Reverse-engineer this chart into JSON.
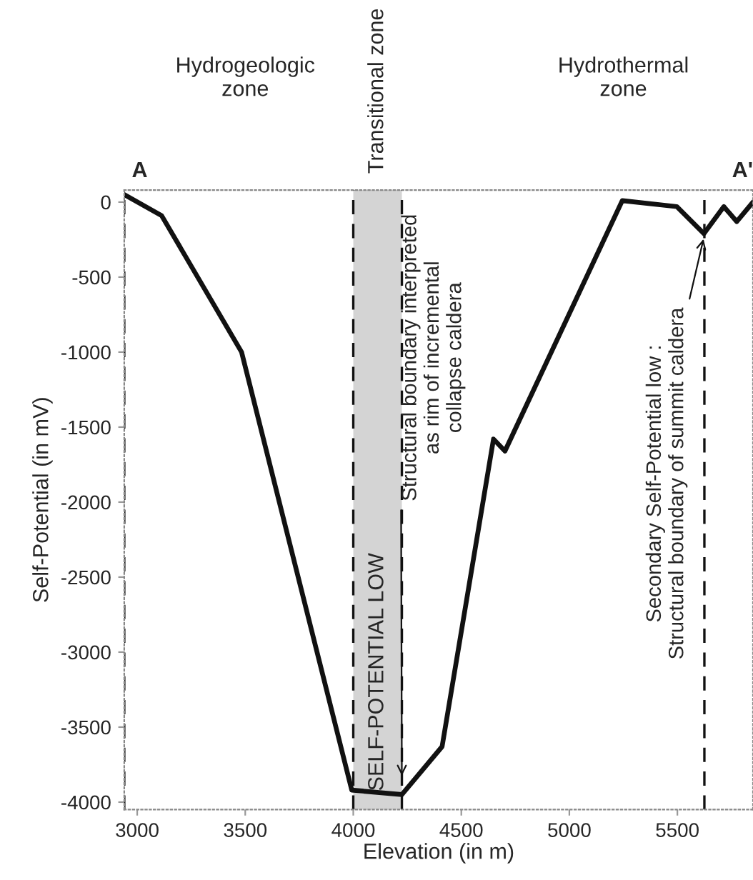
{
  "chart_data": {
    "type": "line",
    "xlabel": "Elevation (in m)",
    "ylabel": "Self-Potential (in mV)",
    "x": [
      2940,
      3113,
      3483,
      3993,
      4225,
      4411,
      4649,
      4702,
      5245,
      5497,
      5623,
      5715,
      5775,
      5850
    ],
    "series": [
      {
        "color": "#111111",
        "values": [
          50,
          -90,
          -1000,
          -3920,
          -3950,
          -3630,
          -1580,
          -1660,
          10,
          -30,
          -210,
          -30,
          -130,
          0
        ]
      }
    ],
    "xlim": [
      2940,
      5850
    ],
    "ylim": [
      -4050,
      80
    ],
    "xticks": [
      3000,
      3500,
      4000,
      4500,
      5000,
      5500
    ],
    "yticks": [
      0,
      -500,
      -1000,
      -1500,
      -2000,
      -2500,
      -3000,
      -3500,
      -4000
    ],
    "grid": false,
    "legend": false,
    "marker": "none",
    "line_style": "solid",
    "bands": [
      {
        "axis": "x",
        "from": 4000,
        "to": 4225,
        "label": "SELF-POTENTIAL LOW",
        "color": "#d4d4d4"
      }
    ],
    "ref_lines": [
      {
        "axis": "x",
        "value": 2940,
        "line_style": "dashed"
      },
      {
        "axis": "x",
        "value": 4000,
        "line_style": "dashed"
      },
      {
        "axis": "x",
        "value": 4225,
        "line_style": "dashed"
      },
      {
        "axis": "x",
        "value": 5625,
        "line_style": "dashed"
      }
    ],
    "annotations": [
      "Hydrogeologic\nzone",
      "Transitional zone",
      "Hydrothermal\nzone",
      "A",
      "A'",
      {
        "text": "Structural boundary interpreted\nas rim of incremental\ncollapse caldera",
        "x": 4225,
        "y": -3850
      },
      {
        "text": "Secondary Self-Potential low :\nStructural boundary of summit caldera",
        "x": 5625,
        "y": -220
      }
    ]
  }
}
